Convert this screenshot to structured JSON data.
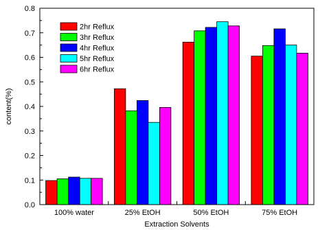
{
  "chart_data": {
    "type": "bar",
    "title": "",
    "xlabel": "Extraction Solvents",
    "ylabel": "content(%)",
    "categories": [
      "100% water",
      "25% EtOH",
      "50% EtOH",
      "75% EtOH"
    ],
    "ylim": [
      0.0,
      0.8
    ],
    "yticks": [
      "0.0",
      "0.1",
      "0.2",
      "0.3",
      "0.4",
      "0.5",
      "0.6",
      "0.7",
      "0.8"
    ],
    "grid": false,
    "legend_position": "top-left",
    "series": [
      {
        "name": "2hr Reflux",
        "color": "#ff0000",
        "values": [
          0.098,
          0.472,
          0.662,
          0.605
        ]
      },
      {
        "name": "3hr Reflux",
        "color": "#00ff00",
        "values": [
          0.105,
          0.382,
          0.708,
          0.648
        ]
      },
      {
        "name": "4hr Reflux",
        "color": "#0000ff",
        "values": [
          0.112,
          0.424,
          0.722,
          0.716
        ]
      },
      {
        "name": "5hr Reflux",
        "color": "#00ffff",
        "values": [
          0.107,
          0.335,
          0.745,
          0.65
        ]
      },
      {
        "name": "6hr Reflux",
        "color": "#ff00ff",
        "values": [
          0.107,
          0.396,
          0.728,
          0.617
        ]
      }
    ]
  }
}
